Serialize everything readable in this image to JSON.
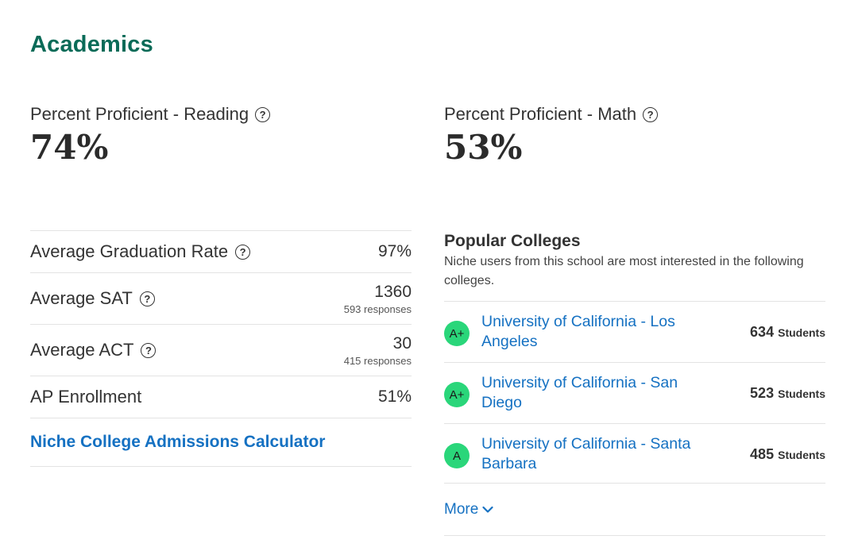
{
  "section": {
    "title": "Academics"
  },
  "proficiency": {
    "reading": {
      "label": "Percent Proficient - Reading",
      "value": "74%"
    },
    "math": {
      "label": "Percent Proficient - Math",
      "value": "53%"
    }
  },
  "stats": [
    {
      "label": "Average Graduation Rate",
      "value": "97%",
      "sub": ""
    },
    {
      "label": "Average SAT",
      "value": "1360",
      "sub": "593 responses"
    },
    {
      "label": "Average ACT",
      "value": "30",
      "sub": "415 responses"
    },
    {
      "label": "AP Enrollment",
      "value": "51%",
      "sub": ""
    }
  ],
  "calculator_link": "Niche College Admissions Calculator",
  "popular_colleges": {
    "title": "Popular Colleges",
    "description": "Niche users from this school are most interested in the following colleges.",
    "items": [
      {
        "grade": "A+",
        "name": "University of California - Los Angeles",
        "count": "634",
        "unit": "Students"
      },
      {
        "grade": "A+",
        "name": "University of California - San Diego",
        "count": "523",
        "unit": "Students"
      },
      {
        "grade": "A",
        "name": "University of California - Santa Barbara",
        "count": "485",
        "unit": "Students"
      }
    ],
    "more_label": "More"
  },
  "icons": {
    "help": "question-circle-icon",
    "chevron": "chevron-down-icon"
  },
  "colors": {
    "title": "#0a6b58",
    "link": "#1571c2",
    "grade_badge": "#2ad67a"
  }
}
